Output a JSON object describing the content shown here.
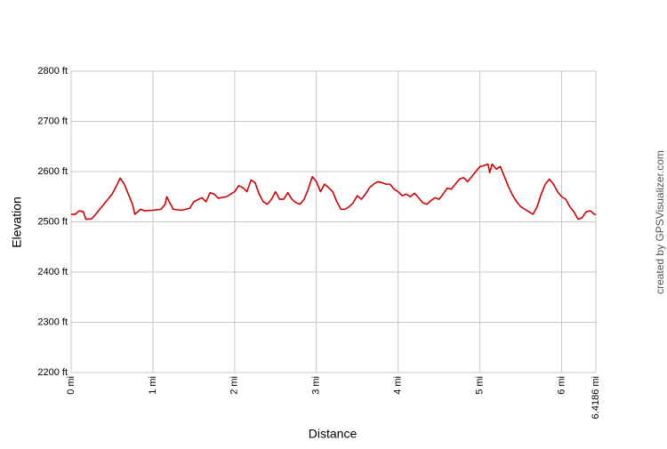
{
  "chart_data": {
    "type": "line",
    "x_label": "Distance",
    "y_label": "Elevation",
    "credit": "created by GPSVisualizer.com",
    "xlim": [
      0,
      6.4186
    ],
    "ylim": [
      2200,
      2800
    ],
    "xticks": [
      {
        "value": 0,
        "label": "0 mi"
      },
      {
        "value": 1,
        "label": "1 mi"
      },
      {
        "value": 2,
        "label": "2 mi"
      },
      {
        "value": 3,
        "label": "3 mi"
      },
      {
        "value": 4,
        "label": "4 mi"
      },
      {
        "value": 5,
        "label": "5 mi"
      },
      {
        "value": 6,
        "label": "6 mi"
      },
      {
        "value": 6.4186,
        "label": "6.4186 mi"
      }
    ],
    "yticks": [
      {
        "value": 2200,
        "label": "2200 ft"
      },
      {
        "value": 2300,
        "label": "2300 ft"
      },
      {
        "value": 2400,
        "label": "2400 ft"
      },
      {
        "value": 2500,
        "label": "2500 ft"
      },
      {
        "value": 2600,
        "label": "2600 ft"
      },
      {
        "value": 2700,
        "label": "2700 ft"
      },
      {
        "value": 2800,
        "label": "2800 ft"
      }
    ],
    "grid": true,
    "series": [
      {
        "color": "#cc0000",
        "x": [
          0,
          0.05,
          0.1,
          0.15,
          0.18,
          0.25,
          0.3,
          0.35,
          0.4,
          0.45,
          0.5,
          0.55,
          0.6,
          0.65,
          0.7,
          0.75,
          0.78,
          0.85,
          0.9,
          1.0,
          1.1,
          1.15,
          1.17,
          1.2,
          1.25,
          1.35,
          1.45,
          1.5,
          1.6,
          1.65,
          1.7,
          1.75,
          1.8,
          1.9,
          2.0,
          2.05,
          2.1,
          2.15,
          2.2,
          2.25,
          2.3,
          2.35,
          2.4,
          2.45,
          2.5,
          2.55,
          2.6,
          2.65,
          2.7,
          2.75,
          2.8,
          2.85,
          2.9,
          2.95,
          3.0,
          3.05,
          3.1,
          3.15,
          3.2,
          3.25,
          3.3,
          3.35,
          3.4,
          3.45,
          3.5,
          3.55,
          3.6,
          3.65,
          3.7,
          3.75,
          3.8,
          3.85,
          3.9,
          3.95,
          4.0,
          4.05,
          4.1,
          4.15,
          4.2,
          4.25,
          4.3,
          4.35,
          4.4,
          4.45,
          4.5,
          4.55,
          4.6,
          4.65,
          4.7,
          4.75,
          4.8,
          4.85,
          4.9,
          4.95,
          5.0,
          5.05,
          5.1,
          5.12,
          5.15,
          5.2,
          5.25,
          5.3,
          5.35,
          5.4,
          5.45,
          5.5,
          5.55,
          5.6,
          5.65,
          5.7,
          5.75,
          5.8,
          5.85,
          5.9,
          5.95,
          6.0,
          6.05,
          6.1,
          6.15,
          6.2,
          6.25,
          6.3,
          6.35,
          6.4,
          6.4186
        ],
        "values": [
          2515,
          2515,
          2522,
          2520,
          2505,
          2506,
          2515,
          2525,
          2535,
          2545,
          2555,
          2570,
          2587,
          2575,
          2555,
          2535,
          2515,
          2525,
          2522,
          2523,
          2525,
          2535,
          2550,
          2540,
          2525,
          2523,
          2527,
          2540,
          2548,
          2540,
          2558,
          2555,
          2547,
          2550,
          2560,
          2572,
          2568,
          2560,
          2583,
          2578,
          2555,
          2540,
          2535,
          2545,
          2560,
          2545,
          2545,
          2558,
          2545,
          2538,
          2535,
          2545,
          2565,
          2590,
          2580,
          2560,
          2575,
          2568,
          2560,
          2540,
          2525,
          2525,
          2530,
          2538,
          2552,
          2545,
          2555,
          2568,
          2575,
          2580,
          2578,
          2575,
          2575,
          2565,
          2560,
          2552,
          2555,
          2550,
          2557,
          2548,
          2538,
          2535,
          2542,
          2548,
          2545,
          2555,
          2567,
          2565,
          2575,
          2585,
          2588,
          2580,
          2590,
          2600,
          2610,
          2612,
          2615,
          2598,
          2615,
          2605,
          2610,
          2590,
          2570,
          2553,
          2540,
          2530,
          2525,
          2520,
          2515,
          2530,
          2555,
          2575,
          2585,
          2575,
          2560,
          2550,
          2545,
          2530,
          2520,
          2505,
          2508,
          2520,
          2522,
          2515,
          2515
        ]
      }
    ]
  }
}
